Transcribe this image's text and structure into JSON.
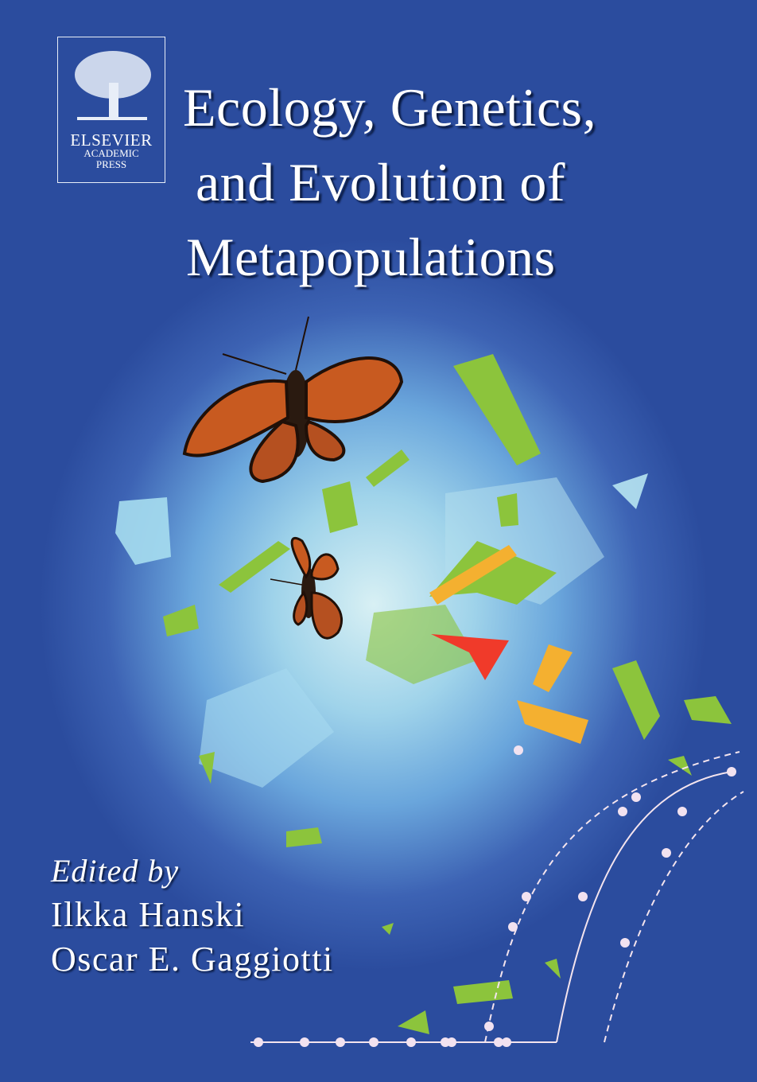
{
  "publisher": {
    "logo_text": "ELSEVIER",
    "imprint_line1": "ACADEMIC",
    "imprint_line2": "PRESS"
  },
  "title": {
    "line1": "Ecology, Genetics,",
    "line2": "and Evolution of",
    "line3": "Metapopulations"
  },
  "editors": {
    "label": "Edited by",
    "names": [
      "Ilkka Hanski",
      "Oscar E. Gaggiotti"
    ]
  },
  "colors": {
    "background": "#2b4c9e",
    "patch_green": "#8cc43c",
    "patch_orange": "#f4b030",
    "patch_red": "#f03a2a",
    "text": "#ffffff"
  }
}
